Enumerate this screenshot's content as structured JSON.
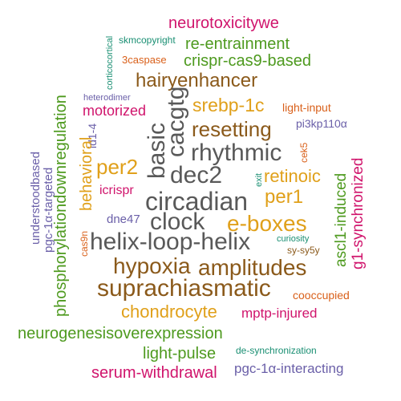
{
  "palette": {
    "gray": "#595959",
    "brown": "#8B5A1B",
    "gold": "#E0A01A",
    "green": "#4E9A1F",
    "magenta": "#D0146C",
    "orange": "#D9601A",
    "purple": "#6A5FA8",
    "teal": "#1A8F73"
  },
  "words": [
    {
      "text": "neurotoxicitywe",
      "color": "magenta"
    },
    {
      "text": "corticocortical",
      "color": "teal"
    },
    {
      "text": "skmcopyright",
      "color": "teal"
    },
    {
      "text": "re-entrainment",
      "color": "green"
    },
    {
      "text": "3caspase",
      "color": "orange"
    },
    {
      "text": "crispr-cas9-based",
      "color": "green"
    },
    {
      "text": "hairyenhancer",
      "color": "brown"
    },
    {
      "text": "heterodimer",
      "color": "brown"
    },
    {
      "text": "heterodimer",
      "color": "purple"
    },
    {
      "text": "srebp-1c",
      "color": "gold"
    },
    {
      "text": "light-input",
      "color": "orange"
    },
    {
      "text": "motorized",
      "color": "magenta"
    },
    {
      "text": "cacgtg",
      "color": "gray"
    },
    {
      "text": "basic",
      "color": "gray"
    },
    {
      "text": "pi3kp110α",
      "color": "purple"
    },
    {
      "text": "id1-4",
      "color": "purple"
    },
    {
      "text": "resetting",
      "color": "brown"
    },
    {
      "text": "rhythmic",
      "color": "gray"
    },
    {
      "text": "cek5",
      "color": "orange"
    },
    {
      "text": "phosphorylationdownregulation",
      "color": "green"
    },
    {
      "text": "behavioral",
      "color": "gold"
    },
    {
      "text": "understoodbased",
      "color": "purple"
    },
    {
      "text": "pgc-1α-targeted",
      "color": "purple"
    },
    {
      "text": "per2",
      "color": "gold"
    },
    {
      "text": "dec2",
      "color": "gray"
    },
    {
      "text": "retinoic",
      "color": "gold"
    },
    {
      "text": "exit",
      "color": "teal"
    },
    {
      "text": "ascl1-induced",
      "color": "green"
    },
    {
      "text": "g1-synchronized",
      "color": "magenta"
    },
    {
      "text": "icrispr",
      "color": "magenta"
    },
    {
      "text": "circadian",
      "color": "gray"
    },
    {
      "text": "per1",
      "color": "gold"
    },
    {
      "text": "dne47",
      "color": "purple"
    },
    {
      "text": "clock",
      "color": "gray"
    },
    {
      "text": "e-boxes",
      "color": "gold"
    },
    {
      "text": "cas9n",
      "color": "orange"
    },
    {
      "text": "helix-loop-helix",
      "color": "gray"
    },
    {
      "text": "curiosity",
      "color": "teal"
    },
    {
      "text": "sy-sy5y",
      "color": "brown"
    },
    {
      "text": "hypoxia",
      "color": "brown"
    },
    {
      "text": "amplitudes",
      "color": "brown"
    },
    {
      "text": "suprachiasmatic",
      "color": "brown"
    },
    {
      "text": "cooccupied",
      "color": "orange"
    },
    {
      "text": "chondrocyte",
      "color": "gold"
    },
    {
      "text": "mptp-injured",
      "color": "magenta"
    },
    {
      "text": "neurogenesisoverexpression",
      "color": "green"
    },
    {
      "text": "light-pulse",
      "color": "green"
    },
    {
      "text": "de-synchronization",
      "color": "teal"
    },
    {
      "text": "serum-withdrawal",
      "color": "magenta"
    },
    {
      "text": "pgc-1α-interacting",
      "color": "purple"
    }
  ]
}
